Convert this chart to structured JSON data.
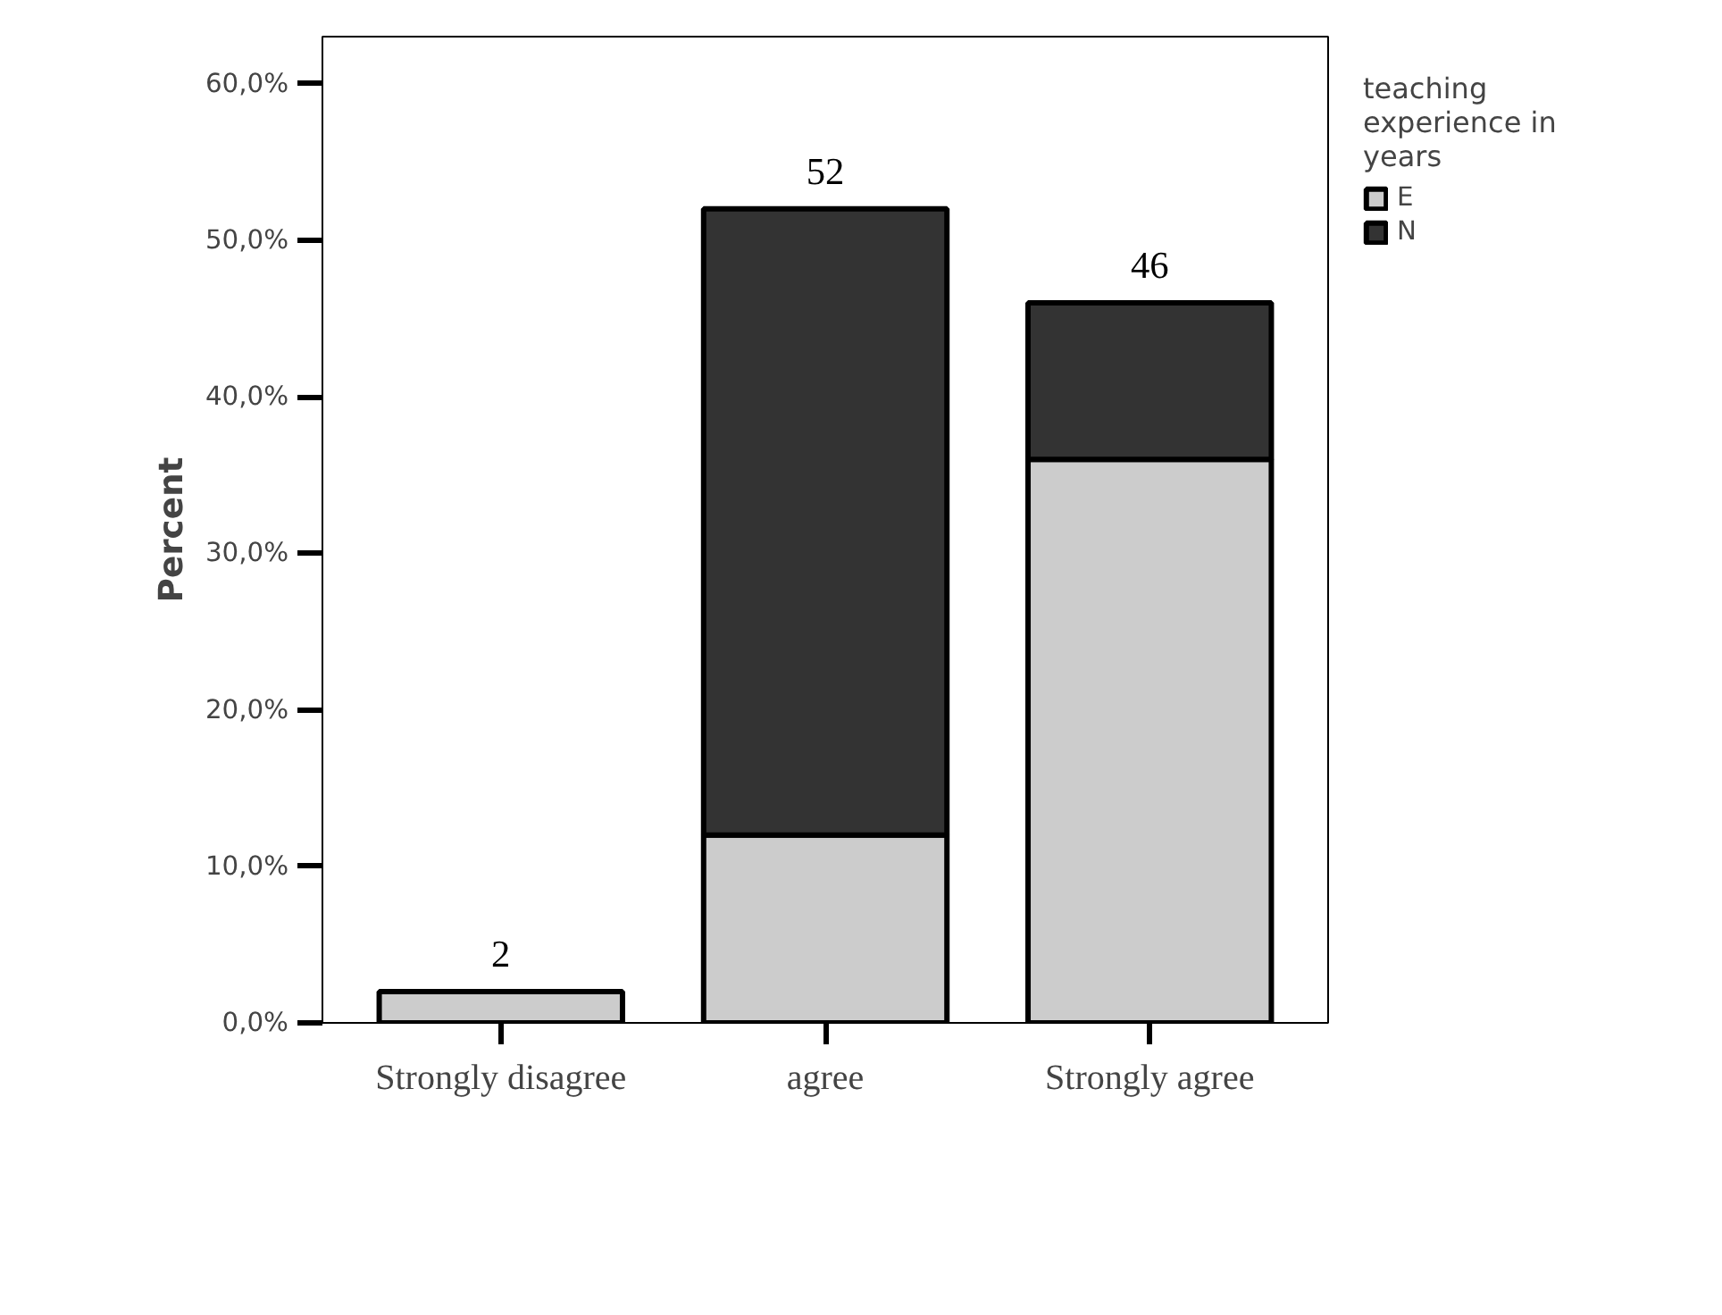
{
  "chart_data": {
    "type": "bar",
    "stacked": true,
    "ylabel": "Percent",
    "legend_title": "teaching experience in years",
    "legend": "top right",
    "grid": false,
    "categories": [
      "Strongly disagree",
      "agree",
      "Strongly agree"
    ],
    "series": [
      {
        "name": "E",
        "color": "#cccccc",
        "values": [
          2,
          12,
          36
        ]
      },
      {
        "name": "N",
        "color": "#333333",
        "values": [
          null,
          40,
          10
        ]
      }
    ],
    "totals": [
      "2",
      "52",
      "46"
    ],
    "ylim": [
      0,
      63
    ],
    "yticks": [
      {
        "value": 0,
        "label": "0,0%"
      },
      {
        "value": 10,
        "label": "10,0%"
      },
      {
        "value": 20,
        "label": "20,0%"
      },
      {
        "value": 30,
        "label": "30,0%"
      },
      {
        "value": 40,
        "label": "40,0%"
      },
      {
        "value": 50,
        "label": "50,0%"
      },
      {
        "value": 60,
        "label": "60,0%"
      }
    ]
  }
}
